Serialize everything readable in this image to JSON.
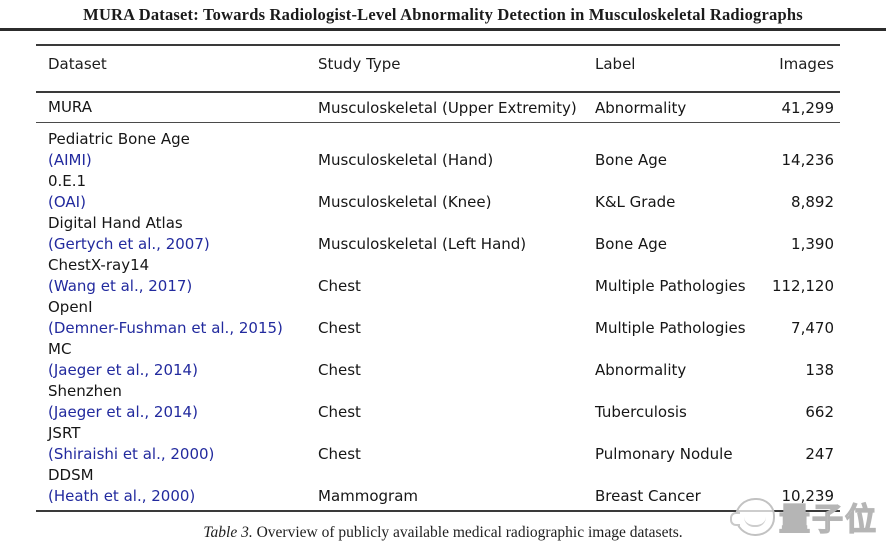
{
  "page": {
    "running_head": "MURA Dataset: Towards Radiologist-Level Abnormality Detection in Musculoskeletal Radiographs"
  },
  "table": {
    "columns": [
      "Dataset",
      "Study Type",
      "Label",
      "Images"
    ],
    "rows": [
      {
        "name": "MURA",
        "citation": "",
        "study_type": "Musculoskeletal (Upper Extremity)",
        "label": "Abnormality",
        "images": "41,299"
      },
      {
        "name": "Pediatric Bone Age",
        "citation": "(AIMI)",
        "study_type": "Musculoskeletal (Hand)",
        "label": "Bone Age",
        "images": "14,236"
      },
      {
        "name": "0.E.1",
        "citation": "(OAI)",
        "study_type": "Musculoskeletal (Knee)",
        "label": "K&L Grade",
        "images": "8,892"
      },
      {
        "name": "Digital Hand Atlas",
        "citation": "(Gertych et al., 2007)",
        "study_type": "Musculoskeletal (Left Hand)",
        "label": "Bone Age",
        "images": "1,390"
      },
      {
        "name": "ChestX-ray14",
        "citation": "(Wang et al., 2017)",
        "study_type": "Chest",
        "label": "Multiple Pathologies",
        "images": "112,120"
      },
      {
        "name": "OpenI",
        "citation": "(Demner-Fushman et al., 2015)",
        "study_type": "Chest",
        "label": "Multiple Pathologies",
        "images": "7,470"
      },
      {
        "name": "MC",
        "citation": "(Jaeger et al., 2014)",
        "study_type": "Chest",
        "label": "Abnormality",
        "images": "138"
      },
      {
        "name": "Shenzhen",
        "citation": "(Jaeger et al., 2014)",
        "study_type": "Chest",
        "label": "Tuberculosis",
        "images": "662"
      },
      {
        "name": "JSRT",
        "citation": "(Shiraishi et al., 2000)",
        "study_type": "Chest",
        "label": "Pulmonary Nodule",
        "images": "247"
      },
      {
        "name": "DDSM",
        "citation": "(Heath et al., 2000)",
        "study_type": "Mammogram",
        "label": "Breast Cancer",
        "images": "10,239"
      }
    ],
    "caption_label": "Table 3.",
    "caption_text": "Overview of publicly available medical radiographic image datasets."
  },
  "watermark": {
    "text": "量子位"
  },
  "colors": {
    "citation_link": "#222a9e",
    "rule": "#3a3a3a",
    "watermark_gray": "#b5b5b5"
  }
}
